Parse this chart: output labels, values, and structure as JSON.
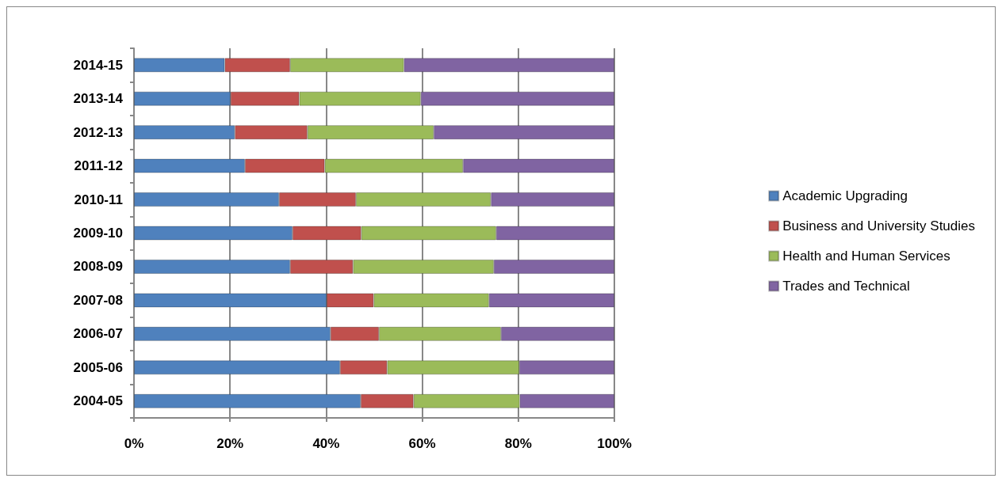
{
  "chart_data": {
    "type": "bar",
    "orientation": "horizontal",
    "stacked": true,
    "categories": [
      "2014-15",
      "2013-14",
      "2012-13",
      "2011-12",
      "2010-11",
      "2009-10",
      "2008-09",
      "2007-08",
      "2006-07",
      "2005-06",
      "2004-05"
    ],
    "series": [
      {
        "name": "Academic Upgrading",
        "color": "#4f81bd",
        "values": [
          18.9,
          20.1,
          21.0,
          23.1,
          30.2,
          33.0,
          32.5,
          40.1,
          40.9,
          42.9,
          47.2
        ]
      },
      {
        "name": "Business and University Studies",
        "color": "#c0504d",
        "values": [
          13.6,
          14.3,
          15.1,
          16.6,
          16.0,
          14.3,
          13.1,
          9.8,
          10.1,
          9.8,
          11.0
        ]
      },
      {
        "name": "Health and Human Services",
        "color": "#9bbb59",
        "values": [
          23.7,
          25.3,
          26.3,
          28.8,
          28.1,
          28.1,
          29.3,
          24.0,
          25.4,
          27.5,
          22.1
        ]
      },
      {
        "name": "Trades and Technical",
        "color": "#8064a2",
        "values": [
          43.8,
          40.3,
          37.6,
          31.5,
          25.7,
          24.6,
          25.1,
          26.1,
          23.6,
          19.8,
          19.7
        ]
      }
    ],
    "xlim": [
      0,
      100
    ],
    "xticks": [
      {
        "value": 0,
        "label": "0%"
      },
      {
        "value": 20,
        "label": "20%"
      },
      {
        "value": 40,
        "label": "40%"
      },
      {
        "value": 60,
        "label": "60%"
      },
      {
        "value": 80,
        "label": "80%"
      },
      {
        "value": 100,
        "label": "100%"
      }
    ],
    "grid": "x",
    "legend": "right"
  }
}
